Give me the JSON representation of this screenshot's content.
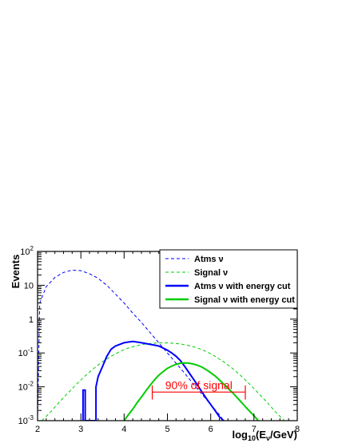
{
  "chart_data": {
    "type": "line",
    "ylabel": "Events",
    "xlabel": {
      "base": "log",
      "sub1": "10",
      "mid": "(E",
      "sub2": "ν",
      "end": "/GeV)"
    },
    "x_scale": "linear",
    "y_scale": "log",
    "xlim": [
      2,
      8
    ],
    "ylim": [
      0.001,
      100
    ],
    "x_ticks": [
      "2",
      "3",
      "4",
      "5",
      "6",
      "7",
      "8"
    ],
    "y_ticks": [
      {
        "base": "10",
        "exp": "-3"
      },
      {
        "base": "10",
        "exp": "-2"
      },
      {
        "base": "10",
        "exp": "-1"
      },
      {
        "base": "1",
        "exp": ""
      },
      {
        "base": "10",
        "exp": ""
      },
      {
        "base": "10",
        "exp": "2"
      }
    ],
    "grid": false,
    "legend_position": "top-right",
    "series": [
      {
        "name": "Atms ν",
        "color": "#0000ff",
        "style": "dashed",
        "points": [
          [
            2.0,
            0.001
          ],
          [
            2.05,
            3.0
          ],
          [
            2.2,
            9.0
          ],
          [
            2.4,
            17.0
          ],
          [
            2.6,
            24.0
          ],
          [
            2.8,
            28.0
          ],
          [
            3.0,
            27.0
          ],
          [
            3.2,
            22.0
          ],
          [
            3.4,
            16.0
          ],
          [
            3.6,
            10.0
          ],
          [
            3.8,
            5.5
          ],
          [
            4.0,
            3.0
          ],
          [
            4.2,
            1.5
          ],
          [
            4.4,
            0.8
          ],
          [
            4.6,
            0.4
          ],
          [
            4.8,
            0.2
          ],
          [
            5.0,
            0.1
          ],
          [
            5.2,
            0.05
          ],
          [
            5.4,
            0.025
          ],
          [
            5.6,
            0.012
          ],
          [
            5.8,
            0.006
          ],
          [
            6.0,
            0.003
          ],
          [
            6.2,
            0.0015
          ],
          [
            6.3,
            0.001
          ]
        ]
      },
      {
        "name": "Signal ν",
        "color": "#00cc00",
        "style": "dashed",
        "points": [
          [
            2.1,
            0.001
          ],
          [
            2.3,
            0.0018
          ],
          [
            2.5,
            0.0035
          ],
          [
            2.7,
            0.0065
          ],
          [
            2.9,
            0.012
          ],
          [
            3.1,
            0.021
          ],
          [
            3.3,
            0.035
          ],
          [
            3.5,
            0.055
          ],
          [
            3.7,
            0.08
          ],
          [
            3.9,
            0.11
          ],
          [
            4.1,
            0.14
          ],
          [
            4.3,
            0.165
          ],
          [
            4.5,
            0.185
          ],
          [
            4.7,
            0.195
          ],
          [
            4.9,
            0.2
          ],
          [
            5.1,
            0.195
          ],
          [
            5.3,
            0.185
          ],
          [
            5.5,
            0.165
          ],
          [
            5.7,
            0.14
          ],
          [
            5.9,
            0.11
          ],
          [
            6.1,
            0.08
          ],
          [
            6.3,
            0.055
          ],
          [
            6.5,
            0.035
          ],
          [
            6.7,
            0.021
          ],
          [
            6.9,
            0.012
          ],
          [
            7.1,
            0.0065
          ],
          [
            7.3,
            0.0035
          ],
          [
            7.5,
            0.0018
          ],
          [
            7.7,
            0.001
          ]
        ]
      },
      {
        "name": "Atms ν with energy cut",
        "color": "#0000ff",
        "style": "solid-thick",
        "points": [
          [
            3.05,
            0.001
          ],
          [
            3.05,
            0.008
          ],
          [
            3.1,
            0.008
          ],
          [
            3.1,
            0.001
          ],
          [
            3.35,
            0.001
          ],
          [
            3.35,
            0.01
          ],
          [
            3.4,
            0.02
          ],
          [
            3.5,
            0.04
          ],
          [
            3.6,
            0.08
          ],
          [
            3.7,
            0.13
          ],
          [
            3.8,
            0.16
          ],
          [
            3.9,
            0.18
          ],
          [
            4.0,
            0.2
          ],
          [
            4.1,
            0.21
          ],
          [
            4.2,
            0.22
          ],
          [
            4.3,
            0.21
          ],
          [
            4.4,
            0.2
          ],
          [
            4.5,
            0.19
          ],
          [
            4.6,
            0.18
          ],
          [
            4.7,
            0.17
          ],
          [
            4.8,
            0.16
          ],
          [
            4.9,
            0.14
          ],
          [
            5.0,
            0.12
          ],
          [
            5.1,
            0.1
          ],
          [
            5.2,
            0.08
          ],
          [
            5.3,
            0.06
          ],
          [
            5.4,
            0.04
          ],
          [
            5.5,
            0.026
          ],
          [
            5.6,
            0.017
          ],
          [
            5.7,
            0.011
          ],
          [
            5.8,
            0.007
          ],
          [
            5.9,
            0.0045
          ],
          [
            6.0,
            0.003
          ],
          [
            6.1,
            0.002
          ],
          [
            6.2,
            0.0013
          ],
          [
            6.3,
            0.001
          ]
        ]
      },
      {
        "name": "Signal ν with energy cut",
        "color": "#00cc00",
        "style": "solid-thick",
        "points": [
          [
            4.0,
            0.001
          ],
          [
            4.1,
            0.0015
          ],
          [
            4.2,
            0.0022
          ],
          [
            4.3,
            0.0034
          ],
          [
            4.4,
            0.005
          ],
          [
            4.5,
            0.0075
          ],
          [
            4.6,
            0.011
          ],
          [
            4.7,
            0.016
          ],
          [
            4.8,
            0.022
          ],
          [
            4.9,
            0.028
          ],
          [
            5.0,
            0.035
          ],
          [
            5.1,
            0.041
          ],
          [
            5.2,
            0.046
          ],
          [
            5.3,
            0.05
          ],
          [
            5.4,
            0.051
          ],
          [
            5.5,
            0.05
          ],
          [
            5.6,
            0.047
          ],
          [
            5.7,
            0.043
          ],
          [
            5.8,
            0.038
          ],
          [
            5.9,
            0.032
          ],
          [
            6.0,
            0.026
          ],
          [
            6.1,
            0.021
          ],
          [
            6.2,
            0.016
          ],
          [
            6.3,
            0.012
          ],
          [
            6.4,
            0.009
          ],
          [
            6.5,
            0.0068
          ],
          [
            6.6,
            0.005
          ],
          [
            6.7,
            0.0036
          ],
          [
            6.8,
            0.0026
          ],
          [
            6.9,
            0.0019
          ],
          [
            7.0,
            0.0014
          ],
          [
            7.1,
            0.001
          ]
        ]
      }
    ],
    "annotation": {
      "text": "90% of signal",
      "color": "#ff0000",
      "x_start": 4.65,
      "x_end": 6.8,
      "y": 0.007,
      "y_text": 0.0085,
      "cap_low": 0.0042,
      "cap_high": 0.011
    }
  }
}
